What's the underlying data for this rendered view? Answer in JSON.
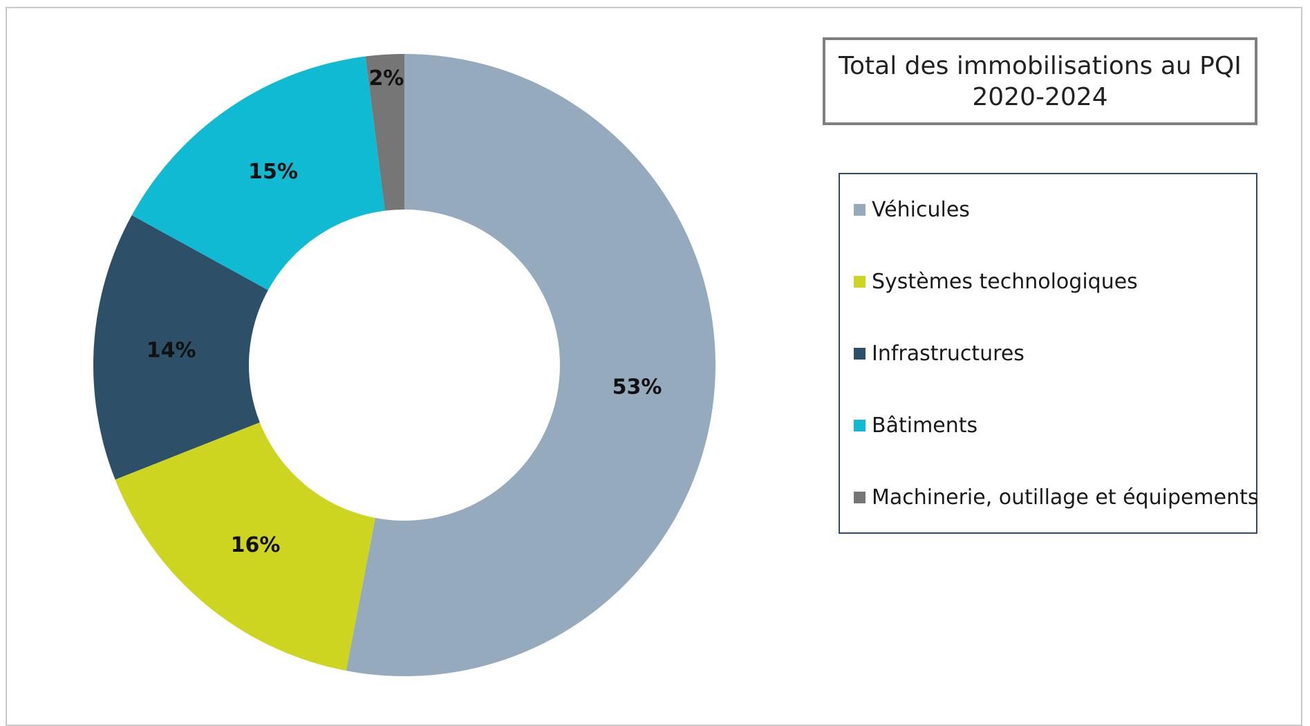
{
  "chart_data": {
    "type": "pie",
    "donut": true,
    "title": "Total des immobilisations au PQI 2020-2024",
    "title_lines": [
      "Total des immobilisations au PQI",
      "2020-2024"
    ],
    "legend_position": "right",
    "slices": [
      {
        "label": "Véhicules",
        "value": 53,
        "display": "53%",
        "color": "#95aabd"
      },
      {
        "label": "Systèmes technologiques",
        "value": 16,
        "display": "16%",
        "color": "#cdd520"
      },
      {
        "label": "Infrastructures",
        "value": 14,
        "display": "14%",
        "color": "#2d4f68"
      },
      {
        "label": "Bâtiments",
        "value": 15,
        "display": "15%",
        "color": "#0fbad2"
      },
      {
        "label": "Machinerie, outillage et équipements",
        "value": 2,
        "display": "2%",
        "color": "#767676"
      }
    ]
  }
}
